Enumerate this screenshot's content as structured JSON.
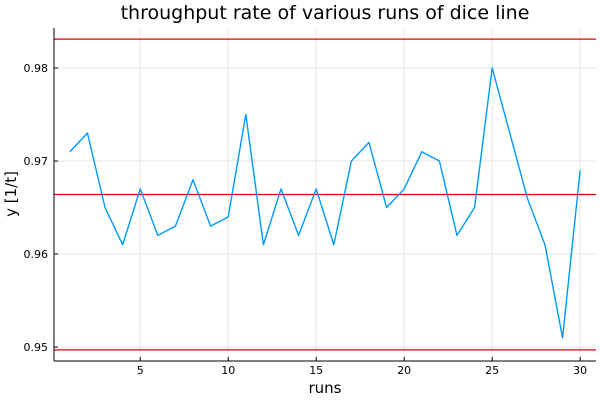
{
  "chart_data": {
    "type": "line",
    "title": "throughput rate of various runs of dice line",
    "xlabel": "runs",
    "ylabel": "y [1/t]",
    "xlim": [
      0.1,
      30.9
    ],
    "ylim": [
      0.9485,
      0.9843
    ],
    "xticks": [
      5,
      10,
      15,
      20,
      25,
      30
    ],
    "xtick_labels": [
      "5",
      "10",
      "15",
      "20",
      "25",
      "30"
    ],
    "yticks": [
      0.95,
      0.96,
      0.97,
      0.98
    ],
    "ytick_labels": [
      "0.95",
      "0.96",
      "0.97",
      "0.98"
    ],
    "grid": true,
    "legend": "none",
    "series": [
      {
        "color": "#009af9",
        "x": [
          1,
          2,
          3,
          4,
          5,
          6,
          7,
          8,
          9,
          10,
          11,
          12,
          13,
          14,
          15,
          16,
          17,
          18,
          19,
          20,
          21,
          22,
          23,
          24,
          25,
          26,
          27,
          28,
          29,
          30
        ],
        "values": [
          0.971,
          0.973,
          0.965,
          0.961,
          0.967,
          0.962,
          0.963,
          0.968,
          0.963,
          0.964,
          0.975,
          0.961,
          0.967,
          0.962,
          0.967,
          0.961,
          0.97,
          0.972,
          0.965,
          0.967,
          0.971,
          0.97,
          0.962,
          0.965,
          0.98,
          0.973,
          0.966,
          0.961,
          0.951,
          0.969
        ]
      }
    ],
    "hlines": [
      {
        "y": 0.9831,
        "color": "#e00000"
      },
      {
        "y": 0.9664,
        "color": "#e00000"
      },
      {
        "y": 0.9497,
        "color": "#e00000"
      }
    ]
  }
}
